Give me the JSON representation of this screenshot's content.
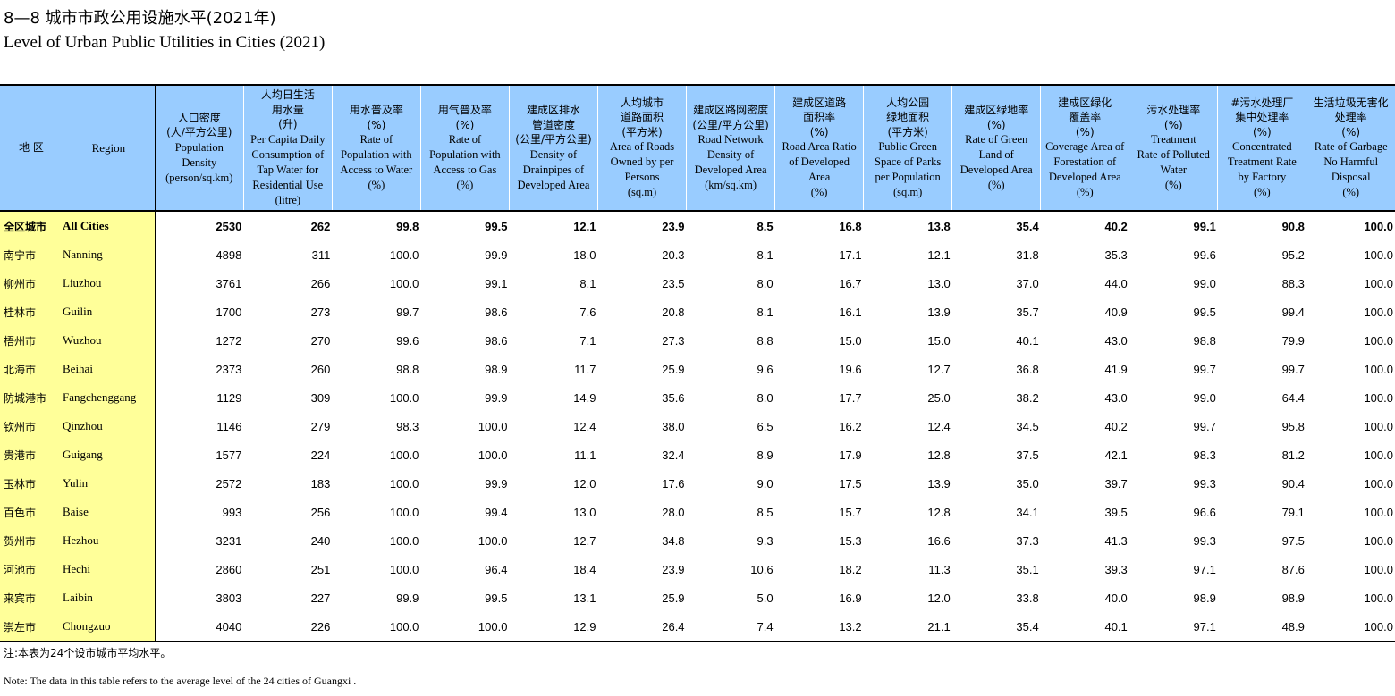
{
  "title_cn": "8—8  城市市政公用设施水平(2021年)",
  "title_en": "Level of Urban Public Utilities in Cities (2021)",
  "region_header": {
    "cn": "地 区",
    "en": "Region"
  },
  "columns": [
    {
      "cn": "人口密度\n(人/平方公里)",
      "en": "Population\nDensity\n(person/sq.km)"
    },
    {
      "cn": "人均日生活\n用水量\n(升)",
      "en": "Per Capita Daily\nConsumption of\nTap Water for\nResidential Use\n(litre)"
    },
    {
      "cn": "用水普及率\n(%)",
      "en": "Rate of\nPopulation with\nAccess to Water\n(%)"
    },
    {
      "cn": "用气普及率\n(%)",
      "en": "Rate of\nPopulation with\nAccess to Gas\n(%)"
    },
    {
      "cn": "建成区排水\n管道密度\n(公里/平方公里)",
      "en": "Density of\nDrainpipes of\nDeveloped Area"
    },
    {
      "cn": "人均城市\n道路面积\n(平方米)",
      "en": "Area of Roads\nOwned by per\nPersons\n(sq.m)"
    },
    {
      "cn": "建成区路网密度\n(公里/平方公里)",
      "en": "Road Network\nDensity of\nDeveloped Area\n(km/sq.km)"
    },
    {
      "cn": "建成区道路\n面积率\n(%)",
      "en": "Road Area Ratio\nof Developed\nArea\n(%)"
    },
    {
      "cn": "人均公园\n绿地面积\n(平方米)",
      "en": "Public Green\nSpace of Parks\nper Population\n(sq.m)"
    },
    {
      "cn": "建成区绿地率\n(%)",
      "en": "Rate of Green\nLand of\nDeveloped Area\n(%)"
    },
    {
      "cn": "建成区绿化\n覆盖率\n(%)",
      "en": "Coverage Area of\nForestation of\nDeveloped Area\n(%)"
    },
    {
      "cn": "污水处理率\n(%)",
      "en": "Treatment\nRate of Polluted\nWater\n(%)"
    },
    {
      "cn": "#污水处理厂\n集中处理率\n(%)",
      "en": "Concentrated\nTreatment Rate\nby Factory\n(%)"
    },
    {
      "cn": "生活垃圾无害化\n处理率\n(%)",
      "en": "Rate of Garbage\nNo Harmful\nDisposal\n(%)"
    }
  ],
  "rows": [
    {
      "cn": "全区城市",
      "en": "All Cities",
      "total": true,
      "values": [
        "2530",
        "262",
        "99.8",
        "99.5",
        "12.1",
        "23.9",
        "8.5",
        "16.8",
        "13.8",
        "35.4",
        "40.2",
        "99.1",
        "90.8",
        "100.0"
      ]
    },
    {
      "cn": "南宁市",
      "en": "Nanning",
      "values": [
        "4898",
        "311",
        "100.0",
        "99.9",
        "18.0",
        "20.3",
        "8.1",
        "17.1",
        "12.1",
        "31.8",
        "35.3",
        "99.6",
        "95.2",
        "100.0"
      ]
    },
    {
      "cn": "柳州市",
      "en": "Liuzhou",
      "values": [
        "3761",
        "266",
        "100.0",
        "99.1",
        "8.1",
        "23.5",
        "8.0",
        "16.7",
        "13.0",
        "37.0",
        "44.0",
        "99.0",
        "88.3",
        "100.0"
      ]
    },
    {
      "cn": "桂林市",
      "en": "Guilin",
      "values": [
        "1700",
        "273",
        "99.7",
        "98.6",
        "7.6",
        "20.8",
        "8.1",
        "16.1",
        "13.9",
        "35.7",
        "40.9",
        "99.5",
        "99.4",
        "100.0"
      ]
    },
    {
      "cn": "梧州市",
      "en": "Wuzhou",
      "values": [
        "1272",
        "270",
        "99.6",
        "98.6",
        "7.1",
        "27.3",
        "8.8",
        "15.0",
        "15.0",
        "40.1",
        "43.0",
        "98.8",
        "79.9",
        "100.0"
      ]
    },
    {
      "cn": "北海市",
      "en": "Beihai",
      "values": [
        "2373",
        "260",
        "98.8",
        "98.9",
        "11.7",
        "25.9",
        "9.6",
        "19.6",
        "12.7",
        "36.8",
        "41.9",
        "99.7",
        "99.7",
        "100.0"
      ]
    },
    {
      "cn": "防城港市",
      "en": "Fangchenggang",
      "values": [
        "1129",
        "309",
        "100.0",
        "99.9",
        "14.9",
        "35.6",
        "8.0",
        "17.7",
        "25.0",
        "38.2",
        "43.0",
        "99.0",
        "64.4",
        "100.0"
      ]
    },
    {
      "cn": "钦州市",
      "en": "Qinzhou",
      "values": [
        "1146",
        "279",
        "98.3",
        "100.0",
        "12.4",
        "38.0",
        "6.5",
        "16.2",
        "12.4",
        "34.5",
        "40.2",
        "99.7",
        "95.8",
        "100.0"
      ]
    },
    {
      "cn": "贵港市",
      "en": "Guigang",
      "values": [
        "1577",
        "224",
        "100.0",
        "100.0",
        "11.1",
        "32.4",
        "8.9",
        "17.9",
        "12.8",
        "37.5",
        "42.1",
        "98.3",
        "81.2",
        "100.0"
      ]
    },
    {
      "cn": "玉林市",
      "en": "Yulin",
      "values": [
        "2572",
        "183",
        "100.0",
        "99.9",
        "12.0",
        "17.6",
        "9.0",
        "17.5",
        "13.9",
        "35.0",
        "39.7",
        "99.3",
        "90.4",
        "100.0"
      ]
    },
    {
      "cn": "百色市",
      "en": "Baise",
      "values": [
        "993",
        "256",
        "100.0",
        "99.4",
        "13.0",
        "28.0",
        "8.5",
        "15.7",
        "12.8",
        "34.1",
        "39.5",
        "96.6",
        "79.1",
        "100.0"
      ]
    },
    {
      "cn": "贺州市",
      "en": "Hezhou",
      "values": [
        "3231",
        "240",
        "100.0",
        "100.0",
        "12.7",
        "34.8",
        "9.3",
        "15.3",
        "16.6",
        "37.3",
        "41.3",
        "99.3",
        "97.5",
        "100.0"
      ]
    },
    {
      "cn": "河池市",
      "en": "Hechi",
      "values": [
        "2860",
        "251",
        "100.0",
        "96.4",
        "18.4",
        "23.9",
        "10.6",
        "18.2",
        "11.3",
        "35.1",
        "39.3",
        "97.1",
        "87.6",
        "100.0"
      ]
    },
    {
      "cn": "来宾市",
      "en": "Laibin",
      "values": [
        "3803",
        "227",
        "99.9",
        "99.5",
        "13.1",
        "25.9",
        "5.0",
        "16.9",
        "12.0",
        "33.8",
        "40.0",
        "98.9",
        "98.9",
        "100.0"
      ]
    },
    {
      "cn": "崇左市",
      "en": "Chongzuo",
      "values": [
        "4040",
        "226",
        "100.0",
        "100.0",
        "12.9",
        "26.4",
        "7.4",
        "13.2",
        "21.1",
        "35.4",
        "40.1",
        "97.1",
        "48.9",
        "100.0"
      ]
    }
  ],
  "note_cn": "注:本表为24个设市城市平均水平。",
  "note_en": "Note: The data in this table refers to the average level of the 24 cities of Guangxi ."
}
